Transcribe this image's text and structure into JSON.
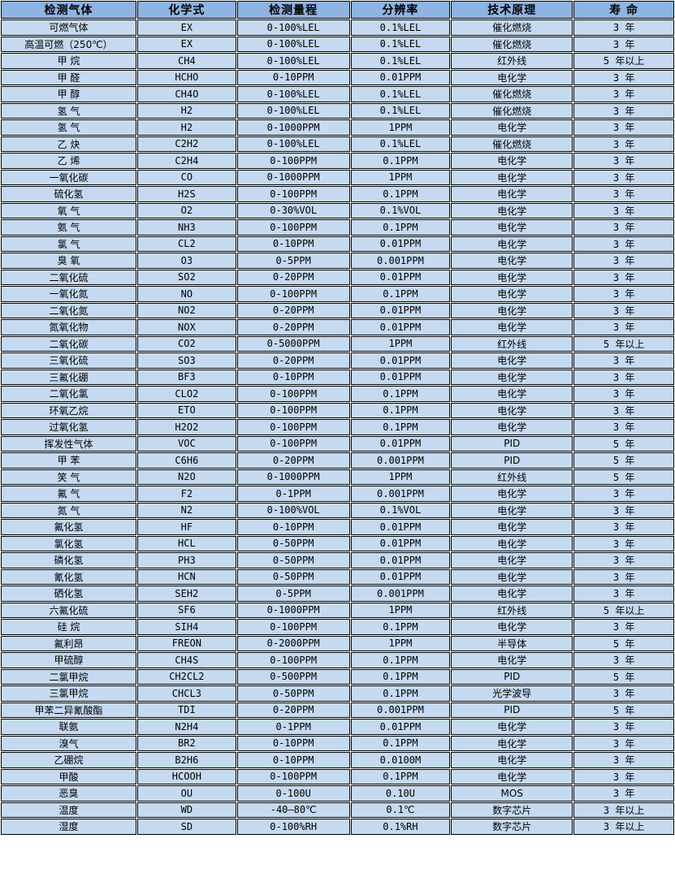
{
  "table": {
    "title_semantic": "gas-detector-specification-table",
    "colors": {
      "header_bg": "#8db4e2",
      "row_bg": "#c5d9f1",
      "border": "#000000",
      "grout": "#ffffff",
      "text": "#000000"
    },
    "headers": [
      "检测气体",
      "化学式",
      "检测量程",
      "分辨率",
      "技术原理",
      "寿 命"
    ],
    "rows": [
      [
        "可燃气体",
        "EX",
        "0-100%LEL",
        "0.1%LEL",
        "催化燃烧",
        "3 年"
      ],
      [
        "高温可燃（250℃）",
        "EX",
        "0-100%LEL",
        "0.1%LEL",
        "催化燃烧",
        "3 年"
      ],
      [
        "甲 烷",
        "CH4",
        "0-100%LEL",
        "0.1%LEL",
        "红外线",
        "5 年以上"
      ],
      [
        "甲 醛",
        "HCHO",
        "0-10PPM",
        "0.01PPM",
        "电化学",
        "3 年"
      ],
      [
        "甲 醇",
        "CH4O",
        "0-100%LEL",
        "0.1%LEL",
        "催化燃烧",
        "3 年"
      ],
      [
        "氢 气",
        "H2",
        "0-100%LEL",
        "0.1%LEL",
        "催化燃烧",
        "3 年"
      ],
      [
        "氢 气",
        "H2",
        "0-1000PPM",
        "1PPM",
        "电化学",
        "3 年"
      ],
      [
        "乙 炔",
        "C2H2",
        "0-100%LEL",
        "0.1%LEL",
        "催化燃烧",
        "3 年"
      ],
      [
        "乙 烯",
        "C2H4",
        "0-100PPM",
        "0.1PPM",
        "电化学",
        "3 年"
      ],
      [
        "一氧化碳",
        "CO",
        "0-1000PPM",
        "1PPM",
        "电化学",
        "3 年"
      ],
      [
        "硫化氢",
        "H2S",
        "0-100PPM",
        "0.1PPM",
        "电化学",
        "3 年"
      ],
      [
        "氧 气",
        "O2",
        "0-30%VOL",
        "0.1%VOL",
        "电化学",
        "3 年"
      ],
      [
        "氨 气",
        "NH3",
        "0-100PPM",
        "0.1PPM",
        "电化学",
        "3 年"
      ],
      [
        "氯 气",
        "CL2",
        "0-10PPM",
        "0.01PPM",
        "电化学",
        "3 年"
      ],
      [
        "臭 氧",
        "O3",
        "0-5PPM",
        "0.001PPM",
        "电化学",
        "3 年"
      ],
      [
        "二氧化硫",
        "SO2",
        "0-20PPM",
        "0.01PPM",
        "电化学",
        "3 年"
      ],
      [
        "一氧化氮",
        "NO",
        "0-100PPM",
        "0.1PPM",
        "电化学",
        "3 年"
      ],
      [
        "二氧化氮",
        "NO2",
        "0-20PPM",
        "0.01PPM",
        "电化学",
        "3 年"
      ],
      [
        "氮氧化物",
        "NOX",
        "0-20PPM",
        "0.01PPM",
        "电化学",
        "3 年"
      ],
      [
        "二氧化碳",
        "CO2",
        "0-5000PPM",
        "1PPM",
        "红外线",
        "5 年以上"
      ],
      [
        "三氧化硫",
        "SO3",
        "0-20PPM",
        "0.01PPM",
        "电化学",
        "3 年"
      ],
      [
        "三氟化硼",
        "BF3",
        "0-10PPM",
        "0.01PPM",
        "电化学",
        "3 年"
      ],
      [
        "二氧化氯",
        "CLO2",
        "0-100PPM",
        "0.1PPM",
        "电化学",
        "3 年"
      ],
      [
        "环氧乙烷",
        "ETO",
        "0-100PPM",
        "0.1PPM",
        "电化学",
        "3 年"
      ],
      [
        "过氧化氢",
        "H2O2",
        "0-100PPM",
        "0.1PPM",
        "电化学",
        "3 年"
      ],
      [
        "挥发性气体",
        "VOC",
        "0-100PPM",
        "0.01PPM",
        "PID",
        "5 年"
      ],
      [
        "甲 苯",
        "C6H6",
        "0-20PPM",
        "0.001PPM",
        "PID",
        "5 年"
      ],
      [
        "笑 气",
        "N2O",
        "0-1000PPM",
        "1PPM",
        "红外线",
        "5 年"
      ],
      [
        "氟 气",
        "F2",
        "0-1PPM",
        "0.001PPM",
        "电化学",
        "3 年"
      ],
      [
        "氮 气",
        "N2",
        "0-100%VOL",
        "0.1%VOL",
        "电化学",
        "3 年"
      ],
      [
        "氟化氢",
        "HF",
        "0-10PPM",
        "0.01PPM",
        "电化学",
        "3 年"
      ],
      [
        "氯化氢",
        "HCL",
        "0-50PPM",
        "0.01PPM",
        "电化学",
        "3 年"
      ],
      [
        "磷化氢",
        "PH3",
        "0-50PPM",
        "0.01PPM",
        "电化学",
        "3 年"
      ],
      [
        "氰化氢",
        "HCN",
        "0-50PPM",
        "0.01PPM",
        "电化学",
        "3 年"
      ],
      [
        "硒化氢",
        "SEH2",
        "0-5PPM",
        "0.001PPM",
        "电化学",
        "3 年"
      ],
      [
        "六氟化硫",
        "SF6",
        "0-1000PPM",
        "1PPM",
        "红外线",
        "5 年以上"
      ],
      [
        "硅 烷",
        "SIH4",
        "0-100PPM",
        "0.1PPM",
        "电化学",
        "3 年"
      ],
      [
        "氟利昂",
        "FREON",
        "0-2000PPM",
        "1PPM",
        "半导体",
        "5 年"
      ],
      [
        "甲硫醇",
        "CH4S",
        "0-100PPM",
        "0.1PPM",
        "电化学",
        "3 年"
      ],
      [
        "二氯甲烷",
        "CH2CL2",
        "0-500PPM",
        "0.1PPM",
        "PID",
        "5 年"
      ],
      [
        "三氯甲烷",
        "CHCL3",
        "0-50PPM",
        "0.1PPM",
        "光学波导",
        "3 年"
      ],
      [
        "甲苯二异氰酸酯",
        "TDI",
        "0-20PPM",
        "0.001PPM",
        "PID",
        "5 年"
      ],
      [
        "联氨",
        "N2H4",
        "0-1PPM",
        "0.01PPM",
        "电化学",
        "3 年"
      ],
      [
        "溴气",
        "BR2",
        "0-10PPM",
        "0.1PPM",
        "电化学",
        "3 年"
      ],
      [
        "乙硼烷",
        "B2H6",
        "0-10PPM",
        "0.0100M",
        "电化学",
        "3 年"
      ],
      [
        "甲酸",
        "HCOOH",
        "0-100PPM",
        "0.1PPM",
        "电化学",
        "3 年"
      ],
      [
        "恶臭",
        "OU",
        "0-100U",
        "0.10U",
        "MOS",
        "3 年"
      ],
      [
        "温度",
        "WD",
        "-40—80℃",
        "0.1℃",
        "数字芯片",
        "3 年以上"
      ],
      [
        "湿度",
        "SD",
        "0-100%RH",
        "0.1%RH",
        "数字芯片",
        "3 年以上"
      ]
    ]
  }
}
